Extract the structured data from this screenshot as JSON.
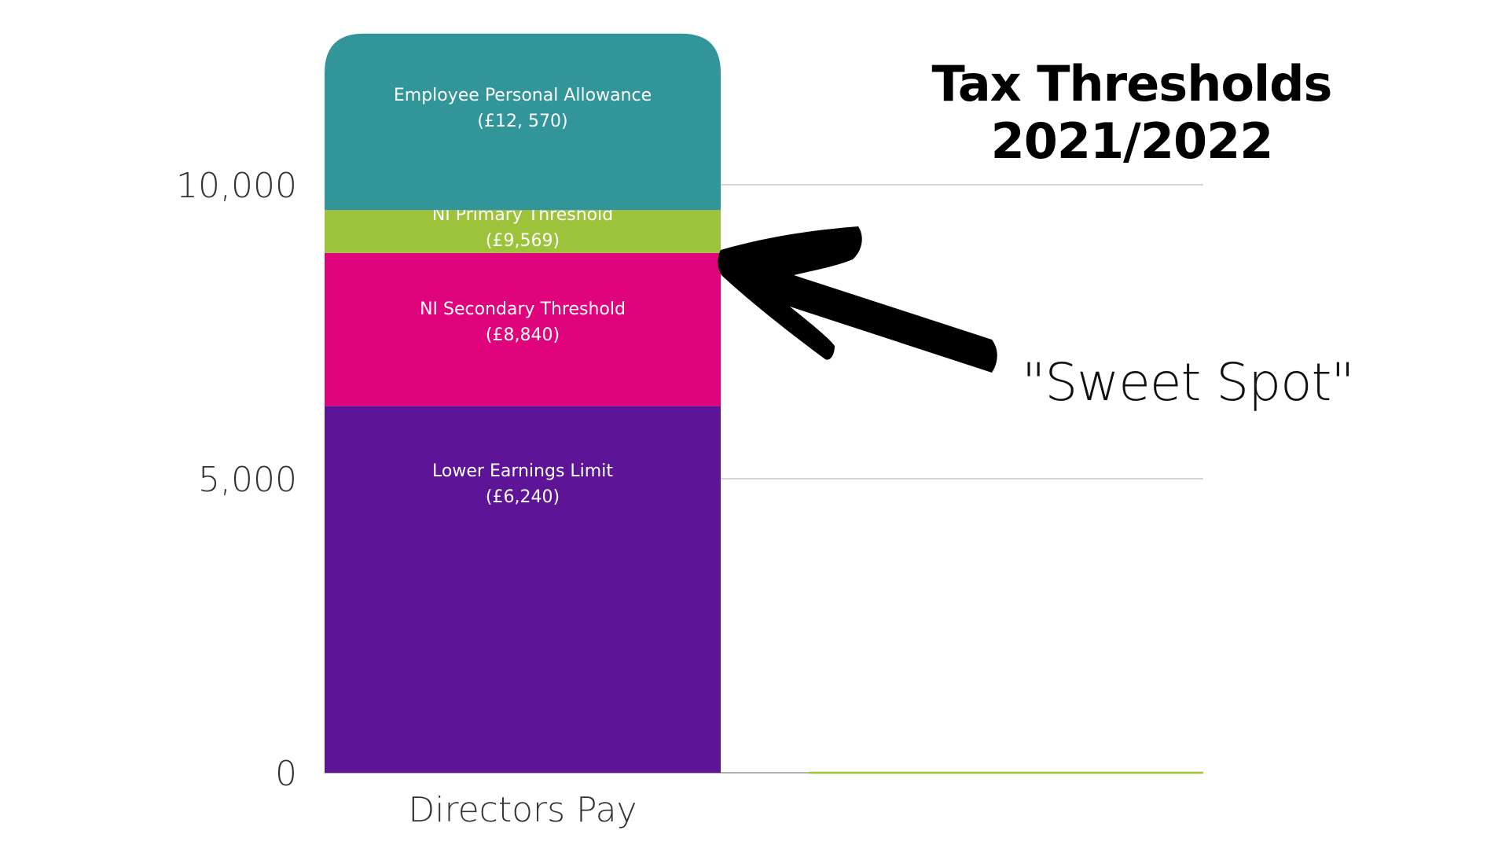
{
  "chart_data": {
    "type": "bar",
    "stacked": true,
    "title": "Tax Thresholds 2021/2022",
    "categories": [
      "Directors Pay",
      ""
    ],
    "ylim": [
      0,
      12570
    ],
    "yticks": [
      0,
      5000,
      10000
    ],
    "ytick_labels": [
      "0",
      "5,000",
      "10,000"
    ],
    "grid": true,
    "segments": [
      {
        "label": "Lower Earnings Limit",
        "value_label": "(£6,240)",
        "top": 6240,
        "color": "#5e1497"
      },
      {
        "label": "NI Secondary Threshold",
        "value_label": "(£8,840)",
        "top": 8840,
        "color": "#e0047c"
      },
      {
        "label": "NI Primary Threshold",
        "value_label": "(£9,569)",
        "top": 9569,
        "color": "#9dc33a"
      },
      {
        "label": "Employee Personal Allowance",
        "value_label": "(£12, 570)",
        "top": 12570,
        "color": "#31959a"
      }
    ],
    "annotation": "\"Sweet Spot\""
  }
}
